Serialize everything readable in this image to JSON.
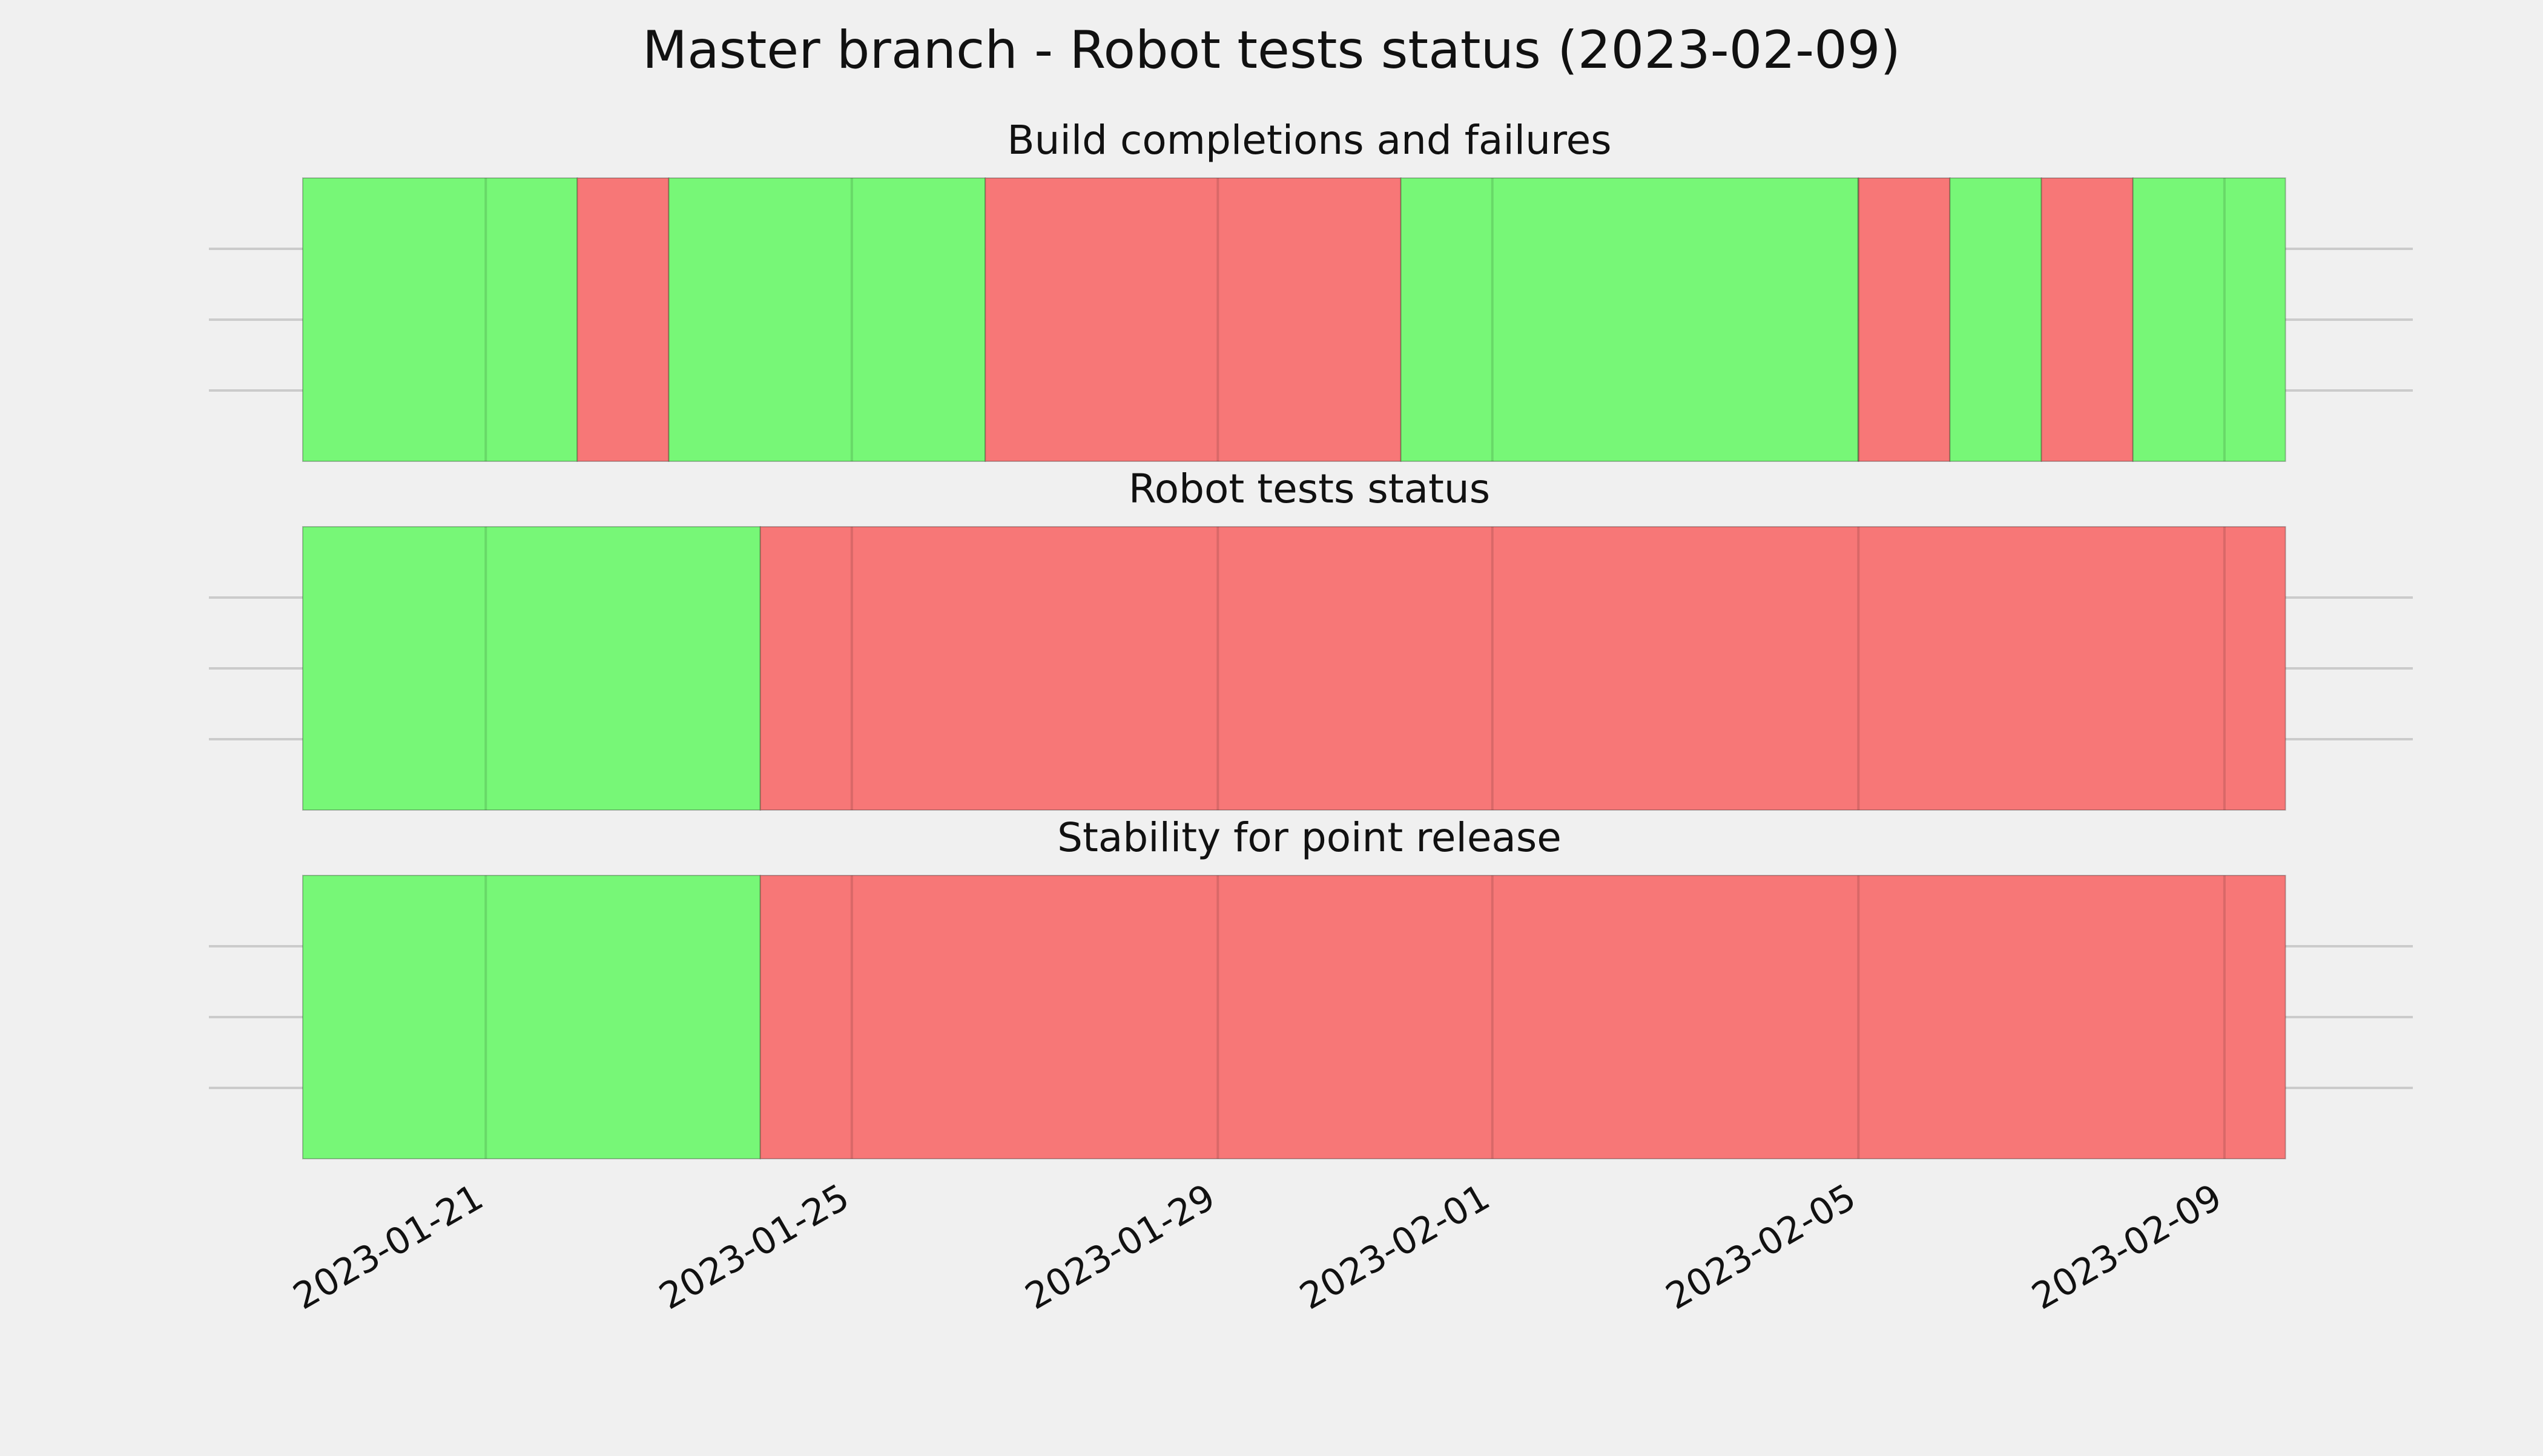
{
  "chart_data": {
    "type": "timeline",
    "title": "Master branch - Robot tests status (2023-02-09)",
    "xlim": [
      "2023-01-19 00:00",
      "2023-02-10 00:00"
    ],
    "x_ticks": [
      "2023-01-21",
      "2023-01-25",
      "2023-01-29",
      "2023-02-01",
      "2023-02-05",
      "2023-02-09"
    ],
    "status_colors": {
      "pass": "#77f777",
      "fail": "#f77777"
    },
    "panels": [
      {
        "title": "Build completions and failures",
        "segments": [
          {
            "status": "pass",
            "start": "2023-01-19 00:00",
            "end": "2023-01-22 00:00"
          },
          {
            "status": "fail",
            "start": "2023-01-22 00:00",
            "end": "2023-01-23 00:00"
          },
          {
            "status": "pass",
            "start": "2023-01-23 00:00",
            "end": "2023-01-26 11:00"
          },
          {
            "status": "fail",
            "start": "2023-01-26 11:00",
            "end": "2023-01-31 00:00"
          },
          {
            "status": "pass",
            "start": "2023-01-31 00:00",
            "end": "2023-02-05 00:00"
          },
          {
            "status": "fail",
            "start": "2023-02-05 00:00",
            "end": "2023-02-06 00:00"
          },
          {
            "status": "pass",
            "start": "2023-02-06 00:00",
            "end": "2023-02-07 00:00"
          },
          {
            "status": "fail",
            "start": "2023-02-07 00:00",
            "end": "2023-02-08 00:00"
          },
          {
            "status": "pass",
            "start": "2023-02-08 00:00",
            "end": "2023-02-09 16:00"
          }
        ]
      },
      {
        "title": "Robot tests status",
        "segments": [
          {
            "status": "pass",
            "start": "2023-01-19 00:00",
            "end": "2023-01-24 00:00"
          },
          {
            "status": "fail",
            "start": "2023-01-24 00:00",
            "end": "2023-02-09 16:00"
          }
        ]
      },
      {
        "title": "Stability for point release",
        "segments": [
          {
            "status": "pass",
            "start": "2023-01-19 00:00",
            "end": "2023-01-24 00:00"
          },
          {
            "status": "fail",
            "start": "2023-01-24 00:00",
            "end": "2023-02-09 16:00"
          }
        ]
      }
    ]
  }
}
